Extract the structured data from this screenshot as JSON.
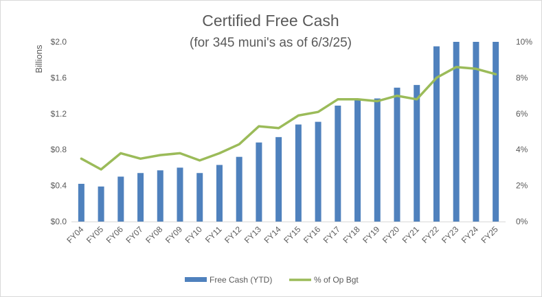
{
  "chart_data": {
    "type": "bar",
    "title": "Certified Free Cash",
    "subtitle": "(for 345 muni's as of 6/3/25)",
    "ylabel": "Billions",
    "y2label": "",
    "categories": [
      "FY04",
      "FY05",
      "FY06",
      "FY07",
      "FY08",
      "FY09",
      "FY10",
      "FY11",
      "FY12",
      "FY13",
      "FY14",
      "FY15",
      "FY16",
      "FY17",
      "FY18",
      "FY19",
      "FY20",
      "FY21",
      "FY22",
      "FY23",
      "FY24",
      "FY25"
    ],
    "series": [
      {
        "name": "Free Cash (YTD)",
        "type": "bar",
        "axis": "left",
        "color": "#4f81bd",
        "values": [
          0.42,
          0.39,
          0.5,
          0.54,
          0.57,
          0.6,
          0.54,
          0.63,
          0.72,
          0.88,
          0.94,
          1.08,
          1.11,
          1.29,
          1.36,
          1.37,
          1.49,
          1.52,
          1.95,
          2.0,
          2.0,
          2.0
        ]
      },
      {
        "name": "% of Op Bgt",
        "type": "line",
        "axis": "right",
        "color": "#9bbb59",
        "values": [
          3.5,
          2.9,
          3.8,
          3.5,
          3.7,
          3.8,
          3.4,
          3.8,
          4.3,
          5.3,
          5.2,
          5.9,
          6.1,
          6.8,
          6.8,
          6.7,
          7.0,
          6.8,
          8.0,
          8.6,
          8.5,
          8.2
        ]
      }
    ],
    "ylim": [
      0,
      2.0
    ],
    "y2lim": [
      0,
      10
    ],
    "y_ticks": [
      "$0.0",
      "$0.4",
      "$0.8",
      "$1.2",
      "$1.6",
      "$2.0"
    ],
    "y_tick_values": [
      0,
      0.4,
      0.8,
      1.2,
      1.6,
      2.0
    ],
    "y2_ticks": [
      "0%",
      "2%",
      "4%",
      "6%",
      "8%",
      "10%"
    ],
    "y2_tick_values": [
      0,
      2,
      4,
      6,
      8,
      10
    ],
    "legend_position": "bottom",
    "grid": false
  }
}
